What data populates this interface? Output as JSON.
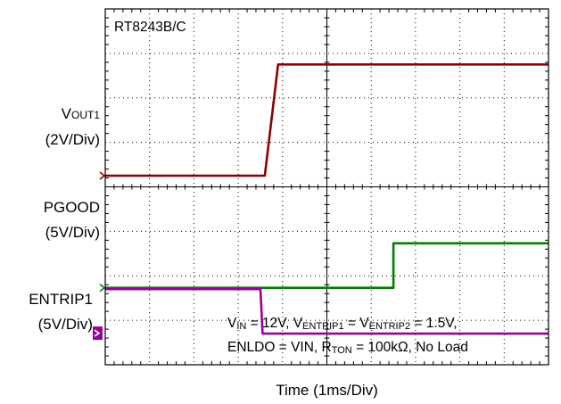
{
  "chart_data": {
    "type": "line",
    "title": "RT8243B/C",
    "xlabel": "Time (1ms/Div)",
    "x_divisions": 10,
    "y_divisions": 8,
    "series": [
      {
        "name": "VOUT1",
        "scale": "(2V/Div)",
        "color": "#8b0000",
        "time_div": [
          0,
          3.6,
          3.9,
          10
        ],
        "level_div": [
          0,
          0,
          2.5,
          2.5
        ]
      },
      {
        "name": "PGOOD",
        "scale": "(5V/Div)",
        "color": "#008000",
        "time_div": [
          0,
          6.5,
          6.5,
          10
        ],
        "level_div": [
          0,
          0,
          1,
          1
        ]
      },
      {
        "name": "ENTRIP1",
        "scale": "(5V/Div)",
        "color": "#990099",
        "time_div": [
          0,
          3.5,
          3.55,
          10
        ],
        "level_div": [
          1,
          1,
          0,
          0
        ]
      }
    ],
    "conditions": {
      "line1": {
        "v_in": "V",
        "v_in_sub": "IN",
        "v_in_val": " = 12V, ",
        "v_e1": "V",
        "v_e1_sub": "ENTRIP1",
        "eq": " = ",
        "v_e2": "V",
        "v_e2_sub": "ENTRIP2",
        "v_e_val": " = 1.5V,"
      },
      "line2": {
        "a": "ENLDO = VIN,  ",
        "r": "R",
        "r_sub": "TON",
        "r_val": " = 100kΩ, No Load"
      }
    }
  },
  "labels": {
    "vout_main": "V",
    "vout_sub": "OUT1",
    "vout_scale": "(2V/Div)",
    "pgood_main": "PGOOD",
    "pgood_scale": "(5V/Div)",
    "entrip_main": "ENTRIP1",
    "entrip_scale": "(5V/Div)"
  },
  "colors": {
    "vout": "#8b0000",
    "pgood": "#008000",
    "entrip": "#990099",
    "grid": "#000000"
  }
}
